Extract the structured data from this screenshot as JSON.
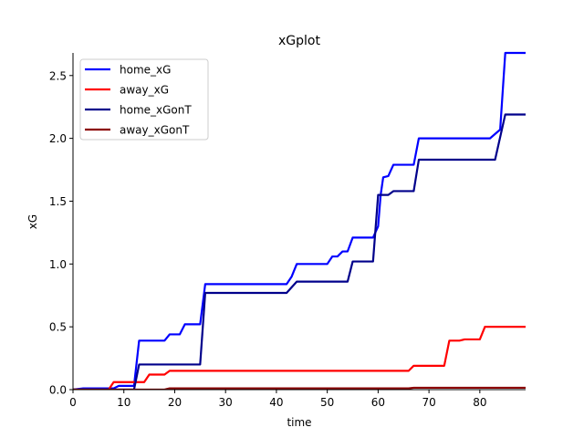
{
  "chart_data": {
    "type": "line",
    "title": "xGplot",
    "xlabel": "time",
    "ylabel": "xG",
    "xlim": [
      0,
      89
    ],
    "ylim": [
      0,
      2.68
    ],
    "xticks": [
      0,
      10,
      20,
      30,
      40,
      50,
      60,
      70,
      80
    ],
    "yticks": [
      0.0,
      0.5,
      1.0,
      1.5,
      2.0,
      2.5
    ],
    "xtick_labels": [
      "0",
      "10",
      "20",
      "30",
      "40",
      "50",
      "60",
      "70",
      "80"
    ],
    "ytick_labels": [
      "0.0",
      "0.5",
      "1.0",
      "1.5",
      "2.0",
      "2.5"
    ],
    "legend_position": "top-left",
    "grid": false,
    "series": [
      {
        "name": "home_xG",
        "color": "#0000ff",
        "points": [
          [
            0,
            0
          ],
          [
            2,
            0.01
          ],
          [
            8,
            0.01
          ],
          [
            9,
            0.03
          ],
          [
            12,
            0.03
          ],
          [
            13,
            0.39
          ],
          [
            18,
            0.39
          ],
          [
            19,
            0.44
          ],
          [
            21,
            0.44
          ],
          [
            22,
            0.52
          ],
          [
            25,
            0.52
          ],
          [
            26,
            0.84
          ],
          [
            42,
            0.84
          ],
          [
            43,
            0.9
          ],
          [
            44,
            1.0
          ],
          [
            50,
            1.0
          ],
          [
            51,
            1.06
          ],
          [
            52,
            1.06
          ],
          [
            53,
            1.1
          ],
          [
            54,
            1.1
          ],
          [
            55,
            1.21
          ],
          [
            59,
            1.21
          ],
          [
            60,
            1.3
          ],
          [
            60.5,
            1.55
          ],
          [
            61,
            1.69
          ],
          [
            62,
            1.7
          ],
          [
            63,
            1.79
          ],
          [
            67,
            1.79
          ],
          [
            68,
            2.0
          ],
          [
            82,
            2.0
          ],
          [
            84,
            2.07
          ],
          [
            85,
            2.68
          ],
          [
            89,
            2.68
          ]
        ]
      },
      {
        "name": "away_xG",
        "color": "#ff0000",
        "points": [
          [
            0,
            0
          ],
          [
            7,
            0
          ],
          [
            8,
            0.06
          ],
          [
            14,
            0.06
          ],
          [
            15,
            0.12
          ],
          [
            18,
            0.12
          ],
          [
            19,
            0.15
          ],
          [
            66,
            0.15
          ],
          [
            67,
            0.19
          ],
          [
            73,
            0.19
          ],
          [
            74,
            0.39
          ],
          [
            76,
            0.39
          ],
          [
            77,
            0.4
          ],
          [
            80,
            0.4
          ],
          [
            81,
            0.5
          ],
          [
            89,
            0.5
          ]
        ]
      },
      {
        "name": "home_xGonT",
        "color": "#00008b",
        "points": [
          [
            0,
            0
          ],
          [
            12,
            0
          ],
          [
            13,
            0.2
          ],
          [
            25,
            0.2
          ],
          [
            26,
            0.77
          ],
          [
            42,
            0.77
          ],
          [
            44,
            0.86
          ],
          [
            54,
            0.86
          ],
          [
            55,
            1.02
          ],
          [
            59,
            1.02
          ],
          [
            60,
            1.55
          ],
          [
            62,
            1.55
          ],
          [
            63,
            1.58
          ],
          [
            67,
            1.58
          ],
          [
            68,
            1.83
          ],
          [
            83,
            1.83
          ],
          [
            85,
            2.19
          ],
          [
            89,
            2.19
          ]
        ]
      },
      {
        "name": "away_xGonT",
        "color": "#8b0000",
        "points": [
          [
            0,
            0
          ],
          [
            18,
            0
          ],
          [
            19,
            0.01
          ],
          [
            66,
            0.01
          ],
          [
            67,
            0.015
          ],
          [
            89,
            0.015
          ]
        ]
      }
    ]
  }
}
